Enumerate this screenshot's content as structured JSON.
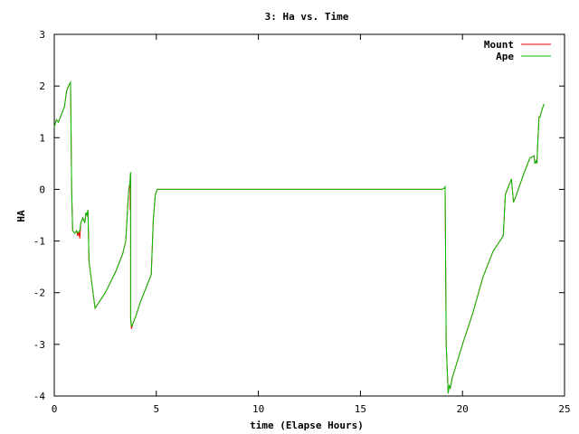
{
  "chart_data": {
    "type": "line",
    "title": "3: Ha vs. Time",
    "xlabel": "time (Elapse Hours)",
    "ylabel": "HA",
    "xlim": [
      0,
      25
    ],
    "ylim": [
      -4,
      3
    ],
    "xticks": [
      0,
      5,
      10,
      15,
      20,
      25
    ],
    "yticks": [
      -4,
      -3,
      -2,
      -1,
      0,
      1,
      2,
      3
    ],
    "grid": false,
    "legend_position": "top-right",
    "series": [
      {
        "name": "Mount",
        "color": "#ff0000",
        "x": [
          0,
          0.1,
          0.2,
          0.3,
          0.4,
          0.5,
          0.6,
          0.7,
          0.8,
          0.85,
          0.9,
          1.0,
          1.1,
          1.15,
          1.2,
          1.25,
          1.3,
          1.4,
          1.5,
          1.55,
          1.6,
          1.65,
          1.7,
          2.0,
          2.5,
          3.0,
          3.2,
          3.35,
          3.5,
          3.65,
          3.7,
          3.72,
          3.72,
          3.74,
          3.74,
          3.78,
          3.85,
          4.0,
          4.2,
          4.4,
          4.6,
          4.75,
          4.85,
          4.95,
          5.05,
          6,
          8,
          10,
          12,
          14,
          16,
          18,
          19.0,
          19.1,
          19.15,
          19.2,
          19.3,
          19.35,
          19.4,
          19.5,
          20.0,
          20.5,
          21.0,
          21.5,
          22.0,
          22.1,
          22.2,
          22.4,
          22.5,
          22.6,
          23.0,
          23.3,
          23.5,
          23.55,
          23.6,
          23.65,
          23.7,
          23.75,
          23.8,
          23.9,
          24.0
        ],
        "y": [
          1.2,
          1.35,
          1.3,
          1.4,
          1.5,
          1.6,
          1.9,
          2.0,
          2.07,
          0.0,
          -0.8,
          -0.85,
          -0.8,
          -0.9,
          -0.82,
          -0.95,
          -0.65,
          -0.55,
          -0.65,
          -0.45,
          -0.5,
          -0.4,
          -1.4,
          -2.3,
          -2.0,
          -1.6,
          -1.4,
          -1.25,
          -1.0,
          0.0,
          0.1,
          0.2,
          -0.4,
          0.33,
          -2.5,
          -2.7,
          -2.6,
          -2.45,
          -2.2,
          -2.0,
          -1.8,
          -1.65,
          -0.6,
          -0.1,
          0.0,
          0.0,
          0.0,
          0.0,
          0.0,
          0.0,
          0.0,
          0.0,
          0.0,
          0.02,
          0.05,
          -3.0,
          -3.95,
          -3.8,
          -3.85,
          -3.65,
          -3.0,
          -2.4,
          -1.7,
          -1.2,
          -0.9,
          -0.1,
          0.0,
          0.2,
          -0.25,
          -0.15,
          0.3,
          0.6,
          0.65,
          0.5,
          0.55,
          0.5,
          1.0,
          1.4,
          1.4,
          1.55,
          1.65
        ]
      },
      {
        "name": "Ape",
        "color": "#00c000",
        "x": [
          0,
          0.1,
          0.2,
          0.3,
          0.4,
          0.5,
          0.6,
          0.7,
          0.8,
          0.85,
          0.9,
          1.0,
          1.1,
          1.15,
          1.2,
          1.25,
          1.3,
          1.4,
          1.5,
          1.55,
          1.6,
          1.65,
          1.7,
          2.0,
          2.5,
          3.0,
          3.2,
          3.35,
          3.5,
          3.65,
          3.7,
          3.72,
          3.72,
          3.74,
          3.74,
          3.78,
          3.85,
          4.0,
          4.2,
          4.4,
          4.6,
          4.75,
          4.85,
          4.95,
          5.05,
          6,
          8,
          10,
          12,
          14,
          16,
          18,
          19.0,
          19.1,
          19.15,
          19.2,
          19.3,
          19.35,
          19.4,
          19.5,
          20.0,
          20.5,
          21.0,
          21.5,
          22.0,
          22.1,
          22.2,
          22.4,
          22.5,
          22.6,
          23.0,
          23.3,
          23.5,
          23.55,
          23.6,
          23.65,
          23.7,
          23.75,
          23.8,
          23.9,
          24.0
        ],
        "y": [
          1.2,
          1.35,
          1.3,
          1.4,
          1.5,
          1.6,
          1.9,
          2.0,
          2.07,
          0.0,
          -0.8,
          -0.85,
          -0.8,
          -0.85,
          -0.82,
          -0.8,
          -0.65,
          -0.55,
          -0.65,
          -0.45,
          -0.5,
          -0.4,
          -1.4,
          -2.3,
          -2.0,
          -1.6,
          -1.4,
          -1.25,
          -1.0,
          0.0,
          0.1,
          0.2,
          0.25,
          0.33,
          -2.5,
          -2.65,
          -2.6,
          -2.45,
          -2.2,
          -2.0,
          -1.8,
          -1.65,
          -0.6,
          -0.1,
          0.0,
          0.0,
          0.0,
          0.0,
          0.0,
          0.0,
          0.0,
          0.0,
          0.0,
          0.02,
          0.05,
          -3.0,
          -3.95,
          -3.8,
          -3.85,
          -3.65,
          -3.0,
          -2.4,
          -1.7,
          -1.2,
          -0.9,
          -0.1,
          0.0,
          0.2,
          -0.25,
          -0.15,
          0.3,
          0.6,
          0.65,
          0.5,
          0.55,
          0.5,
          1.0,
          1.4,
          1.4,
          1.55,
          1.65
        ]
      }
    ]
  }
}
